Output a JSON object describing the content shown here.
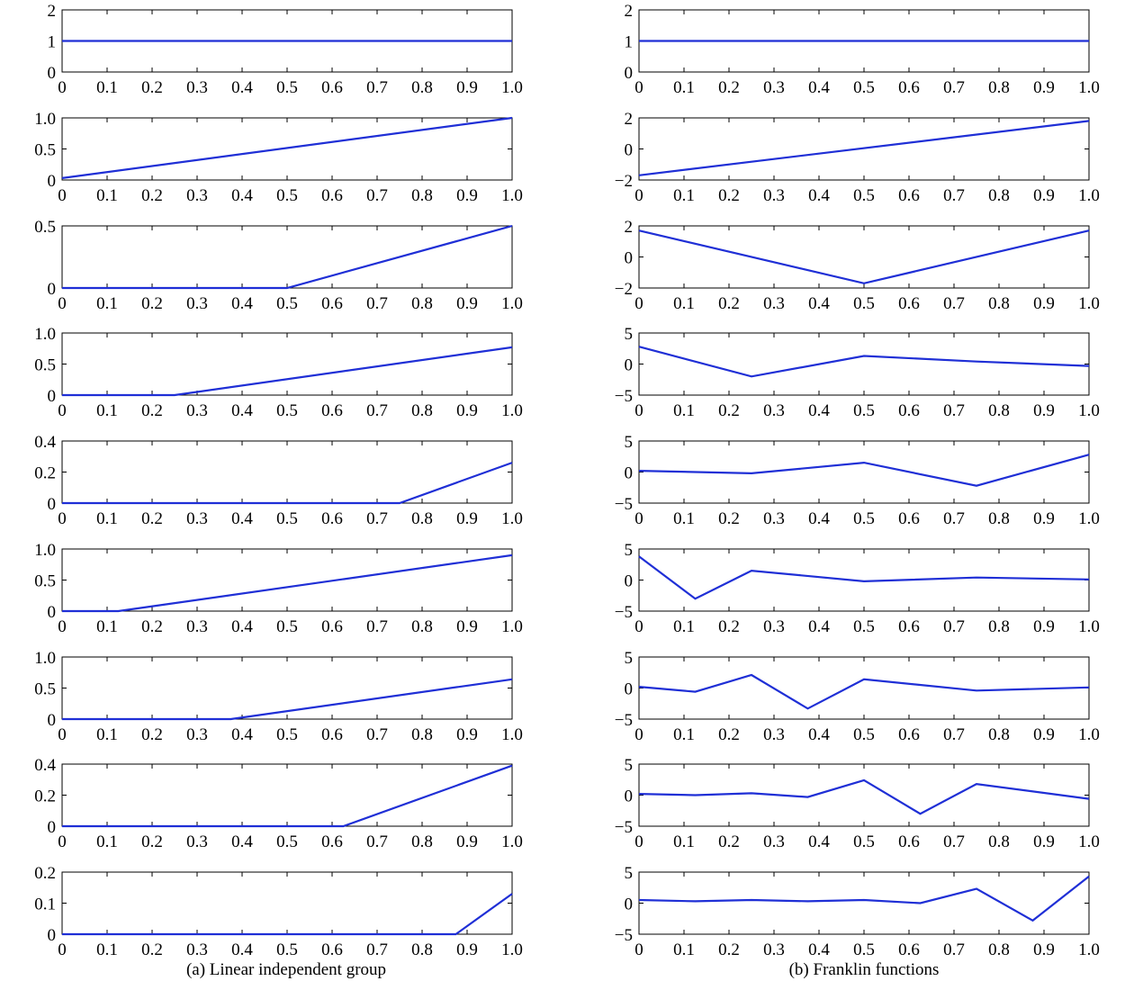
{
  "colors": {
    "line": "#1f2fd6",
    "axis": "#000000",
    "background": "#ffffff"
  },
  "captions": {
    "left": "(a) Linear independent group",
    "right": "(b) Franklin functions"
  },
  "chart_data": [
    {
      "type": "line",
      "column": "left",
      "row": 0,
      "xlim": [
        0,
        1
      ],
      "ylim": [
        0,
        2
      ],
      "xticks": [
        0,
        0.1,
        0.2,
        0.3,
        0.4,
        0.5,
        0.6,
        0.7,
        0.8,
        0.9,
        1.0
      ],
      "xtick_labels": [
        "0",
        "0.1",
        "0.2",
        "0.3",
        "0.4",
        "0.5",
        "0.6",
        "0.7",
        "0.8",
        "0.9",
        "1.0"
      ],
      "yticks": [
        0,
        1,
        2
      ],
      "ytick_labels": [
        "0",
        "1",
        "2"
      ],
      "series": [
        {
          "x": [
            0,
            1
          ],
          "y": [
            1,
            1
          ]
        }
      ]
    },
    {
      "type": "line",
      "column": "left",
      "row": 1,
      "xlim": [
        0,
        1
      ],
      "ylim": [
        0,
        1
      ],
      "xticks": [
        0,
        0.1,
        0.2,
        0.3,
        0.4,
        0.5,
        0.6,
        0.7,
        0.8,
        0.9,
        1.0
      ],
      "xtick_labels": [
        "0",
        "0.1",
        "0.2",
        "0.3",
        "0.4",
        "0.5",
        "0.6",
        "0.7",
        "0.8",
        "0.9",
        "1.0"
      ],
      "yticks": [
        0,
        0.5,
        1.0
      ],
      "ytick_labels": [
        "0",
        "0.5",
        "1.0"
      ],
      "series": [
        {
          "x": [
            0,
            1
          ],
          "y": [
            0.03,
            1.0
          ]
        }
      ]
    },
    {
      "type": "line",
      "column": "left",
      "row": 2,
      "xlim": [
        0,
        1
      ],
      "ylim": [
        0,
        0.5
      ],
      "xticks": [
        0,
        0.1,
        0.2,
        0.3,
        0.4,
        0.5,
        0.6,
        0.7,
        0.8,
        0.9,
        1.0
      ],
      "xtick_labels": [
        "0",
        "0.1",
        "0.2",
        "0.3",
        "0.4",
        "0.5",
        "0.6",
        "0.7",
        "0.8",
        "0.9",
        "1.0"
      ],
      "yticks": [
        0,
        0.5
      ],
      "ytick_labels": [
        "0",
        "0.5"
      ],
      "series": [
        {
          "x": [
            0,
            0.5,
            1
          ],
          "y": [
            0,
            0,
            0.5
          ]
        }
      ]
    },
    {
      "type": "line",
      "column": "left",
      "row": 3,
      "xlim": [
        0,
        1
      ],
      "ylim": [
        0,
        1
      ],
      "xticks": [
        0,
        0.1,
        0.2,
        0.3,
        0.4,
        0.5,
        0.6,
        0.7,
        0.8,
        0.9,
        1.0
      ],
      "xtick_labels": [
        "0",
        "0.1",
        "0.2",
        "0.3",
        "0.4",
        "0.5",
        "0.6",
        "0.7",
        "0.8",
        "0.9",
        "1.0"
      ],
      "yticks": [
        0,
        0.5,
        1.0
      ],
      "ytick_labels": [
        "0",
        "0.5",
        "1.0"
      ],
      "series": [
        {
          "x": [
            0,
            0.25,
            1
          ],
          "y": [
            0,
            0,
            0.77
          ]
        }
      ]
    },
    {
      "type": "line",
      "column": "left",
      "row": 4,
      "xlim": [
        0,
        1
      ],
      "ylim": [
        0,
        0.4
      ],
      "xticks": [
        0,
        0.1,
        0.2,
        0.3,
        0.4,
        0.5,
        0.6,
        0.7,
        0.8,
        0.9,
        1.0
      ],
      "xtick_labels": [
        "0",
        "0.1",
        "0.2",
        "0.3",
        "0.4",
        "0.5",
        "0.6",
        "0.7",
        "0.8",
        "0.9",
        "1.0"
      ],
      "yticks": [
        0,
        0.2,
        0.4
      ],
      "ytick_labels": [
        "0",
        "0.2",
        "0.4"
      ],
      "series": [
        {
          "x": [
            0,
            0.75,
            1
          ],
          "y": [
            0,
            0,
            0.26
          ]
        }
      ]
    },
    {
      "type": "line",
      "column": "left",
      "row": 5,
      "xlim": [
        0,
        1
      ],
      "ylim": [
        0,
        1
      ],
      "xticks": [
        0,
        0.1,
        0.2,
        0.3,
        0.4,
        0.5,
        0.6,
        0.7,
        0.8,
        0.9,
        1.0
      ],
      "xtick_labels": [
        "0",
        "0.1",
        "0.2",
        "0.3",
        "0.4",
        "0.5",
        "0.6",
        "0.7",
        "0.8",
        "0.9",
        "1.0"
      ],
      "yticks": [
        0,
        0.5,
        1.0
      ],
      "ytick_labels": [
        "0",
        "0.5",
        "1.0"
      ],
      "series": [
        {
          "x": [
            0,
            0.125,
            1
          ],
          "y": [
            0,
            0,
            0.9
          ]
        }
      ]
    },
    {
      "type": "line",
      "column": "left",
      "row": 6,
      "xlim": [
        0,
        1
      ],
      "ylim": [
        0,
        1
      ],
      "xticks": [
        0,
        0.1,
        0.2,
        0.3,
        0.4,
        0.5,
        0.6,
        0.7,
        0.8,
        0.9,
        1.0
      ],
      "xtick_labels": [
        "0",
        "0.1",
        "0.2",
        "0.3",
        "0.4",
        "0.5",
        "0.6",
        "0.7",
        "0.8",
        "0.9",
        "1.0"
      ],
      "yticks": [
        0,
        0.5,
        1.0
      ],
      "ytick_labels": [
        "0",
        "0.5",
        "1.0"
      ],
      "series": [
        {
          "x": [
            0,
            0.375,
            1
          ],
          "y": [
            0,
            0,
            0.64
          ]
        }
      ]
    },
    {
      "type": "line",
      "column": "left",
      "row": 7,
      "xlim": [
        0,
        1
      ],
      "ylim": [
        0,
        0.4
      ],
      "xticks": [
        0,
        0.1,
        0.2,
        0.3,
        0.4,
        0.5,
        0.6,
        0.7,
        0.8,
        0.9,
        1.0
      ],
      "xtick_labels": [
        "0",
        "0.1",
        "0.2",
        "0.3",
        "0.4",
        "0.5",
        "0.6",
        "0.7",
        "0.8",
        "0.9",
        "1.0"
      ],
      "yticks": [
        0,
        0.2,
        0.4
      ],
      "ytick_labels": [
        "0",
        "0.2",
        "0.4"
      ],
      "series": [
        {
          "x": [
            0,
            0.625,
            1
          ],
          "y": [
            0,
            0,
            0.39
          ]
        }
      ]
    },
    {
      "type": "line",
      "column": "left",
      "row": 8,
      "xlim": [
        0,
        1
      ],
      "ylim": [
        0,
        0.2
      ],
      "xticks": [
        0,
        0.1,
        0.2,
        0.3,
        0.4,
        0.5,
        0.6,
        0.7,
        0.8,
        0.9,
        1.0
      ],
      "xtick_labels": [
        "0",
        "0.1",
        "0.2",
        "0.3",
        "0.4",
        "0.5",
        "0.6",
        "0.7",
        "0.8",
        "0.9",
        "1.0"
      ],
      "yticks": [
        0,
        0.1,
        0.2
      ],
      "ytick_labels": [
        "0",
        "0.1",
        "0.2"
      ],
      "series": [
        {
          "x": [
            0,
            0.875,
            1
          ],
          "y": [
            0,
            0,
            0.13
          ]
        }
      ]
    },
    {
      "type": "line",
      "column": "right",
      "row": 0,
      "xlim": [
        0,
        1
      ],
      "ylim": [
        0,
        2
      ],
      "xticks": [
        0,
        0.1,
        0.2,
        0.3,
        0.4,
        0.5,
        0.6,
        0.7,
        0.8,
        0.9,
        1.0
      ],
      "xtick_labels": [
        "0",
        "0.1",
        "0.2",
        "0.3",
        "0.4",
        "0.5",
        "0.6",
        "0.7",
        "0.8",
        "0.9",
        "1.0"
      ],
      "yticks": [
        0,
        1,
        2
      ],
      "ytick_labels": [
        "0",
        "1",
        "2"
      ],
      "series": [
        {
          "x": [
            0,
            1
          ],
          "y": [
            1,
            1
          ]
        }
      ]
    },
    {
      "type": "line",
      "column": "right",
      "row": 1,
      "xlim": [
        0,
        1
      ],
      "ylim": [
        -2,
        2
      ],
      "xticks": [
        0,
        0.1,
        0.2,
        0.3,
        0.4,
        0.5,
        0.6,
        0.7,
        0.8,
        0.9,
        1.0
      ],
      "xtick_labels": [
        "0",
        "0.1",
        "0.2",
        "0.3",
        "0.4",
        "0.5",
        "0.6",
        "0.7",
        "0.8",
        "0.9",
        "1.0"
      ],
      "yticks": [
        -2,
        0,
        2
      ],
      "ytick_labels": [
        "−2",
        "0",
        "2"
      ],
      "series": [
        {
          "x": [
            0,
            1
          ],
          "y": [
            -1.7,
            1.8
          ]
        }
      ]
    },
    {
      "type": "line",
      "column": "right",
      "row": 2,
      "xlim": [
        0,
        1
      ],
      "ylim": [
        -2,
        2
      ],
      "xticks": [
        0,
        0.1,
        0.2,
        0.3,
        0.4,
        0.5,
        0.6,
        0.7,
        0.8,
        0.9,
        1.0
      ],
      "xtick_labels": [
        "0",
        "0.1",
        "0.2",
        "0.3",
        "0.4",
        "0.5",
        "0.6",
        "0.7",
        "0.8",
        "0.9",
        "1.0"
      ],
      "yticks": [
        -2,
        0,
        2
      ],
      "ytick_labels": [
        "−2",
        "0",
        "2"
      ],
      "series": [
        {
          "x": [
            0,
            0.5,
            1
          ],
          "y": [
            1.7,
            -1.7,
            1.7
          ]
        }
      ]
    },
    {
      "type": "line",
      "column": "right",
      "row": 3,
      "xlim": [
        0,
        1
      ],
      "ylim": [
        -5,
        5
      ],
      "xticks": [
        0,
        0.1,
        0.2,
        0.3,
        0.4,
        0.5,
        0.6,
        0.7,
        0.8,
        0.9,
        1.0
      ],
      "xtick_labels": [
        "0",
        "0.1",
        "0.2",
        "0.3",
        "0.4",
        "0.5",
        "0.6",
        "0.7",
        "0.8",
        "0.9",
        "1.0"
      ],
      "yticks": [
        -5,
        0,
        5
      ],
      "ytick_labels": [
        "−5",
        "0",
        "5"
      ],
      "series": [
        {
          "x": [
            0,
            0.25,
            0.5,
            0.75,
            1
          ],
          "y": [
            2.8,
            -2.0,
            1.3,
            0.4,
            -0.3
          ]
        }
      ]
    },
    {
      "type": "line",
      "column": "right",
      "row": 4,
      "xlim": [
        0,
        1
      ],
      "ylim": [
        -5,
        5
      ],
      "xticks": [
        0,
        0.1,
        0.2,
        0.3,
        0.4,
        0.5,
        0.6,
        0.7,
        0.8,
        0.9,
        1.0
      ],
      "xtick_labels": [
        "0",
        "0.1",
        "0.2",
        "0.3",
        "0.4",
        "0.5",
        "0.6",
        "0.7",
        "0.8",
        "0.9",
        "1.0"
      ],
      "yticks": [
        -5,
        0,
        5
      ],
      "ytick_labels": [
        "−5",
        "0",
        "5"
      ],
      "series": [
        {
          "x": [
            0,
            0.25,
            0.5,
            0.75,
            1
          ],
          "y": [
            0.2,
            -0.2,
            1.5,
            -2.2,
            2.8
          ]
        }
      ]
    },
    {
      "type": "line",
      "column": "right",
      "row": 5,
      "xlim": [
        0,
        1
      ],
      "ylim": [
        -5,
        5
      ],
      "xticks": [
        0,
        0.1,
        0.2,
        0.3,
        0.4,
        0.5,
        0.6,
        0.7,
        0.8,
        0.9,
        1.0
      ],
      "xtick_labels": [
        "0",
        "0.1",
        "0.2",
        "0.3",
        "0.4",
        "0.5",
        "0.6",
        "0.7",
        "0.8",
        "0.9",
        "1.0"
      ],
      "yticks": [
        -5,
        0,
        5
      ],
      "ytick_labels": [
        "−5",
        "0",
        "5"
      ],
      "series": [
        {
          "x": [
            0,
            0.125,
            0.25,
            0.5,
            0.75,
            1
          ],
          "y": [
            3.8,
            -3.0,
            1.5,
            -0.2,
            0.4,
            0.1
          ]
        }
      ]
    },
    {
      "type": "line",
      "column": "right",
      "row": 6,
      "xlim": [
        0,
        1
      ],
      "ylim": [
        -5,
        5
      ],
      "xticks": [
        0,
        0.1,
        0.2,
        0.3,
        0.4,
        0.5,
        0.6,
        0.7,
        0.8,
        0.9,
        1.0
      ],
      "xtick_labels": [
        "0",
        "0.1",
        "0.2",
        "0.3",
        "0.4",
        "0.5",
        "0.6",
        "0.7",
        "0.8",
        "0.9",
        "1.0"
      ],
      "yticks": [
        -5,
        0,
        5
      ],
      "ytick_labels": [
        "−5",
        "0",
        "5"
      ],
      "series": [
        {
          "x": [
            0,
            0.125,
            0.25,
            0.375,
            0.5,
            0.75,
            1
          ],
          "y": [
            0.2,
            -0.6,
            2.1,
            -3.3,
            1.4,
            -0.4,
            0.1
          ]
        }
      ]
    },
    {
      "type": "line",
      "column": "right",
      "row": 7,
      "xlim": [
        0,
        1
      ],
      "ylim": [
        -5,
        5
      ],
      "xticks": [
        0,
        0.1,
        0.2,
        0.3,
        0.4,
        0.5,
        0.6,
        0.7,
        0.8,
        0.9,
        1.0
      ],
      "xtick_labels": [
        "0",
        "0.1",
        "0.2",
        "0.3",
        "0.4",
        "0.5",
        "0.6",
        "0.7",
        "0.8",
        "0.9",
        "1.0"
      ],
      "yticks": [
        -5,
        0,
        5
      ],
      "ytick_labels": [
        "−5",
        "0",
        "5"
      ],
      "series": [
        {
          "x": [
            0,
            0.125,
            0.25,
            0.375,
            0.5,
            0.625,
            0.75,
            1
          ],
          "y": [
            0.2,
            0.0,
            0.3,
            -0.3,
            2.4,
            -3.0,
            1.8,
            -0.6
          ]
        }
      ]
    },
    {
      "type": "line",
      "column": "right",
      "row": 8,
      "xlim": [
        0,
        1
      ],
      "ylim": [
        -5,
        5
      ],
      "xticks": [
        0,
        0.1,
        0.2,
        0.3,
        0.4,
        0.5,
        0.6,
        0.7,
        0.8,
        0.9,
        1.0
      ],
      "xtick_labels": [
        "0",
        "0.1",
        "0.2",
        "0.3",
        "0.4",
        "0.5",
        "0.6",
        "0.7",
        "0.8",
        "0.9",
        "1.0"
      ],
      "yticks": [
        -5,
        0,
        5
      ],
      "ytick_labels": [
        "−5",
        "0",
        "5"
      ],
      "series": [
        {
          "x": [
            0,
            0.125,
            0.25,
            0.375,
            0.5,
            0.625,
            0.75,
            0.875,
            1
          ],
          "y": [
            0.5,
            0.3,
            0.5,
            0.3,
            0.5,
            0.0,
            2.3,
            -2.8,
            4.3
          ]
        }
      ]
    }
  ]
}
